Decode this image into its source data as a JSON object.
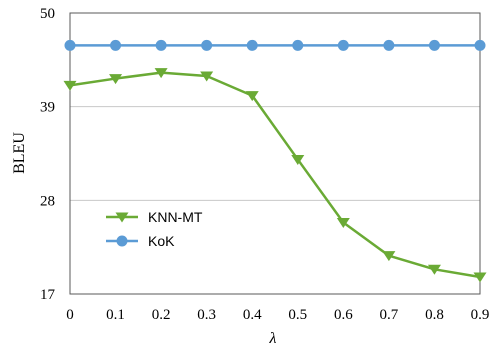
{
  "chart_data": {
    "type": "line",
    "xlabel": "λ",
    "ylabel": "BLEU",
    "x": [
      0,
      0.1,
      0.2,
      0.3,
      0.4,
      0.5,
      0.6,
      0.7,
      0.8,
      0.9
    ],
    "x_tick_labels": [
      "0",
      "0.1",
      "0.2",
      "0.3",
      "0.4",
      "0.5",
      "0.6",
      "0.7",
      "0.8",
      "0.9"
    ],
    "y_ticks": [
      17,
      28,
      39,
      50
    ],
    "ylim": [
      17,
      50
    ],
    "grid": "horizontal",
    "legend_position": "lower-left",
    "series": [
      {
        "name": "KNN-MT",
        "marker": "triangle-down",
        "color": "#6aaa35",
        "values": [
          41.5,
          42.3,
          43.0,
          42.6,
          40.3,
          32.8,
          25.4,
          21.5,
          19.9,
          19.0
        ]
      },
      {
        "name": "KoK",
        "marker": "circle",
        "color": "#5b9bd5",
        "values": [
          46.2,
          46.2,
          46.2,
          46.2,
          46.2,
          46.2,
          46.2,
          46.2,
          46.2,
          46.2
        ]
      }
    ]
  }
}
